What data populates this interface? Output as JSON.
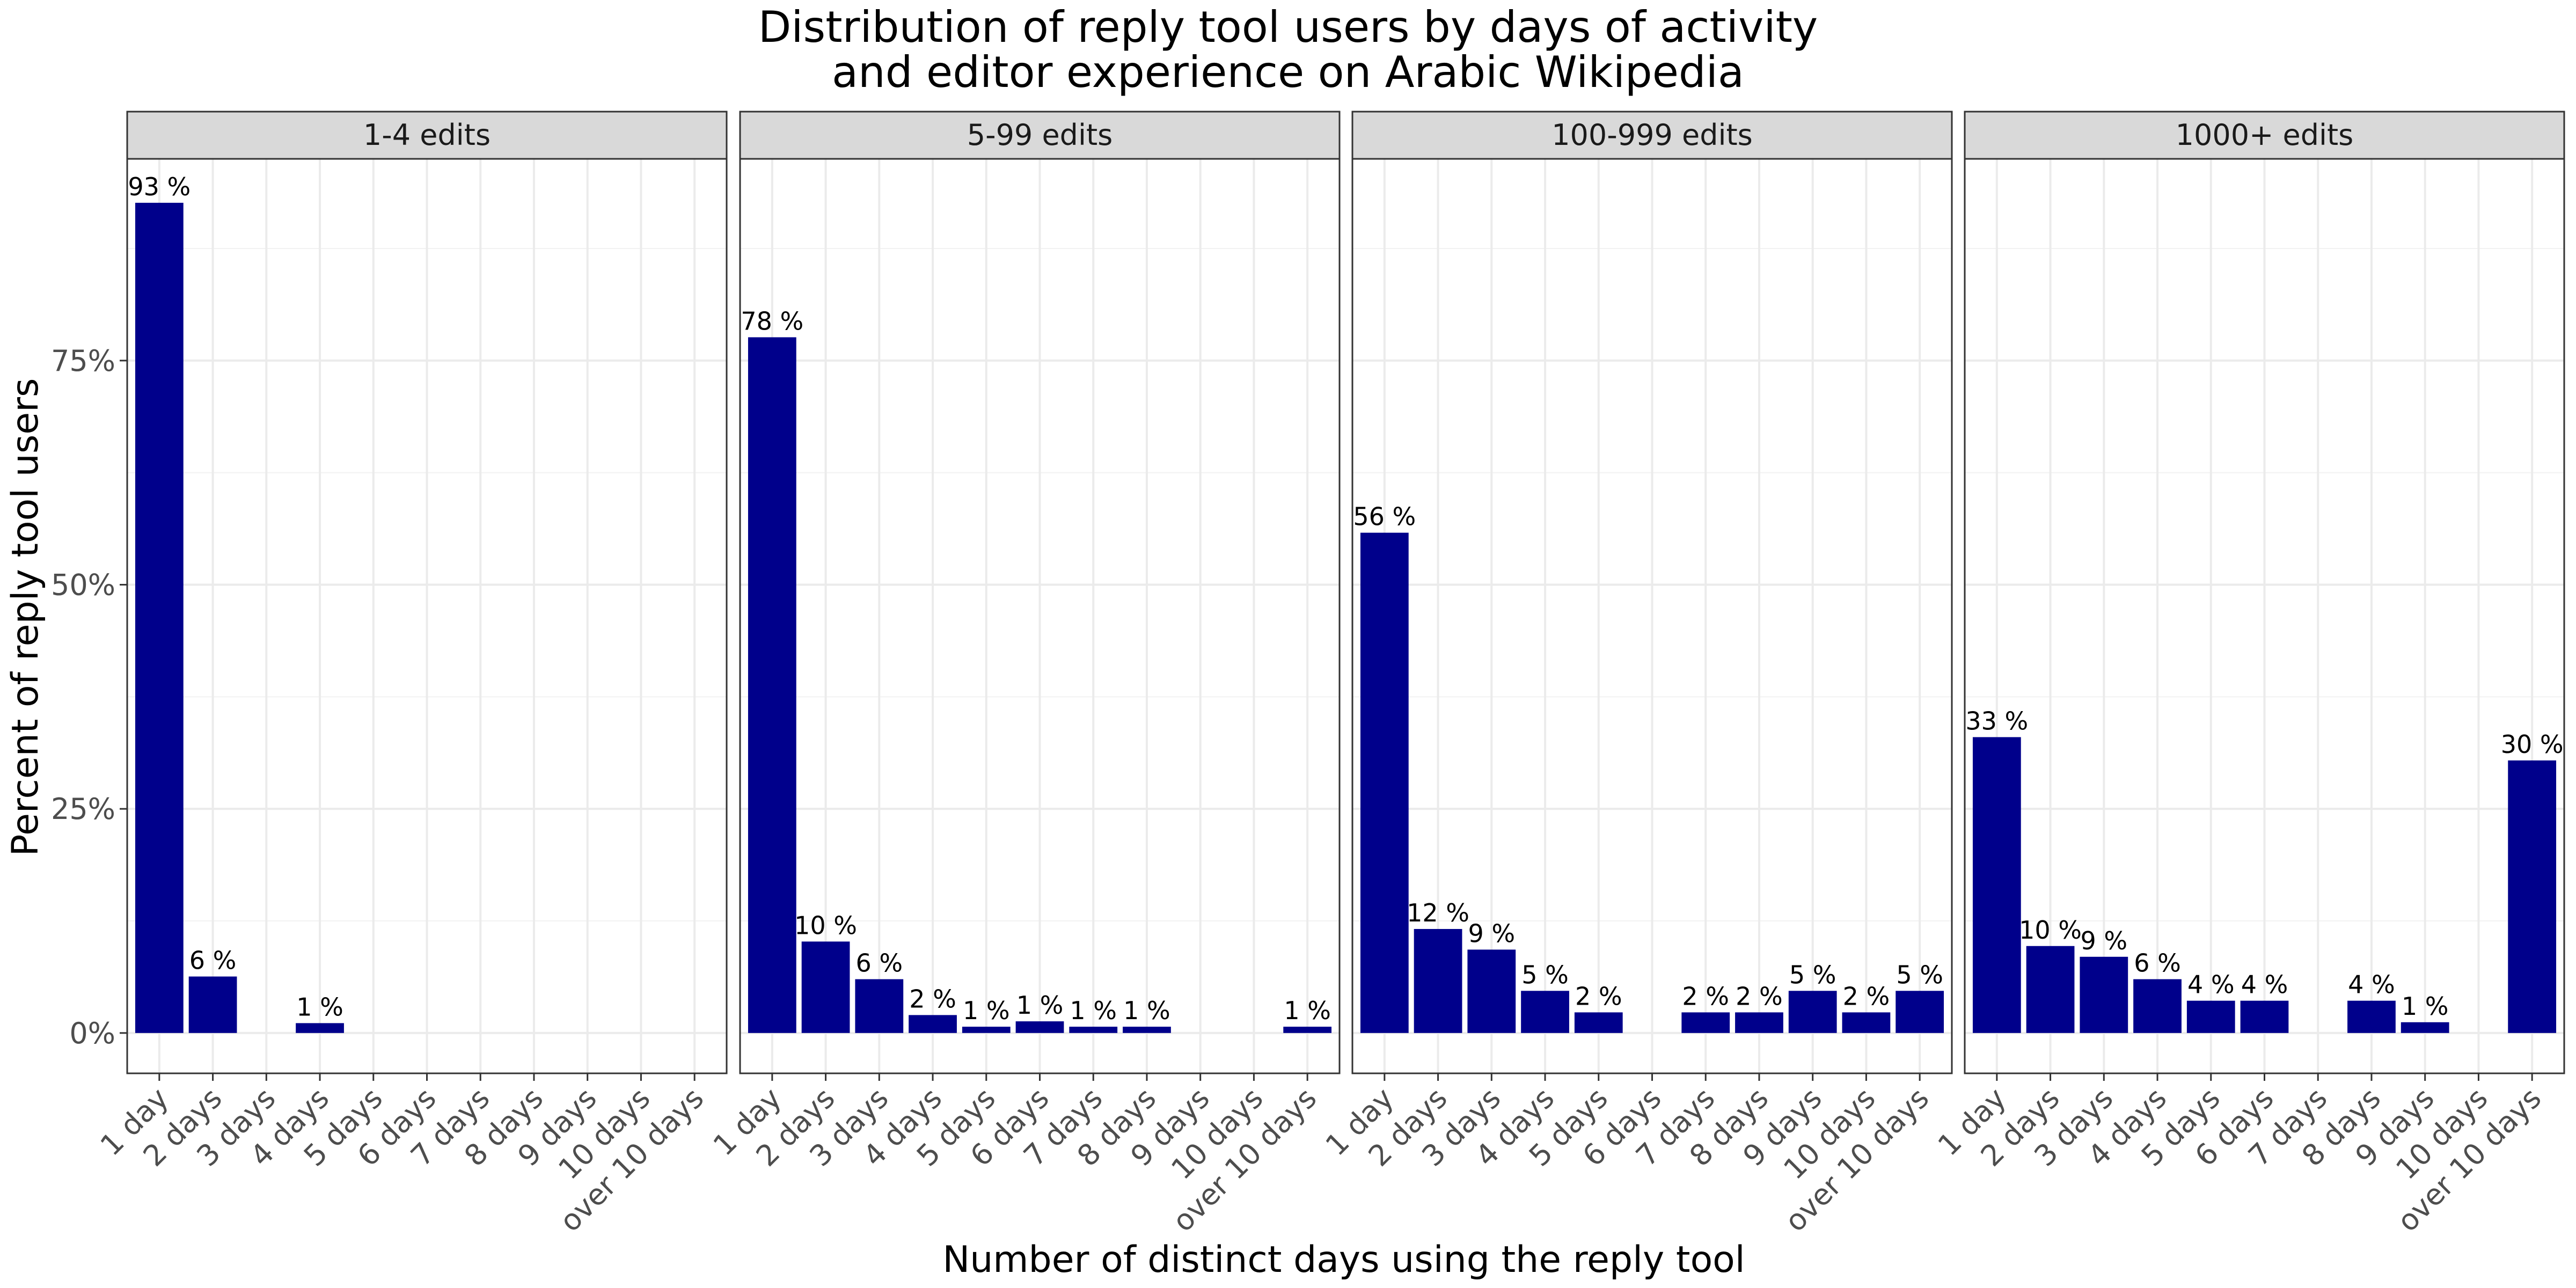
{
  "chart_data": {
    "type": "bar",
    "title_line1": "Distribution of reply tool users by days of activity",
    "title_line2": "and editor experience on Arabic Wikipedia",
    "xlabel": "Number of distinct days using the reply tool",
    "ylabel": "Percent of reply tool users",
    "ylim": [
      -0.045,
      0.975
    ],
    "y_ticks": [
      0,
      0.25,
      0.5,
      0.75
    ],
    "y_tick_labels": [
      "0%",
      "25%",
      "50%",
      "75%"
    ],
    "grid": true,
    "bar_color": "#00008B",
    "categories": [
      "1 day",
      "2 days",
      "3 days",
      "4 days",
      "5 days",
      "6 days",
      "7 days",
      "8 days",
      "9 days",
      "10 days",
      "over 10 days"
    ],
    "panels": [
      {
        "name": "1-4 edits",
        "values": [
          0.926,
          0.063,
          0,
          0.011,
          0,
          0,
          0,
          0,
          0,
          0,
          0
        ],
        "labels": [
          "93 %",
          "6 %",
          "",
          "1 %",
          "",
          "",
          "",
          "",
          "",
          "",
          ""
        ]
      },
      {
        "name": "5-99 edits",
        "values": [
          0.776,
          0.102,
          0.06,
          0.02,
          0.007,
          0.013,
          0.007,
          0.007,
          0,
          0,
          0.007
        ],
        "labels": [
          "78 %",
          "10 %",
          "6 %",
          "2 %",
          "1 %",
          "1 %",
          "1 %",
          "1 %",
          "",
          "",
          "1 %"
        ]
      },
      {
        "name": "100-999 edits",
        "values": [
          0.558,
          0.116,
          0.093,
          0.047,
          0.023,
          0,
          0.023,
          0.023,
          0.047,
          0.023,
          0.047
        ],
        "labels": [
          "56 %",
          "12 %",
          "9 %",
          "5 %",
          "2 %",
          "",
          "2 %",
          "2 %",
          "5 %",
          "2 %",
          "5 %"
        ]
      },
      {
        "name": "1000+ edits",
        "values": [
          0.33,
          0.097,
          0.085,
          0.06,
          0.036,
          0.036,
          0,
          0.036,
          0.012,
          0,
          0.304
        ],
        "labels": [
          "33 %",
          "10 %",
          "9 %",
          "6 %",
          "4 %",
          "4 %",
          "",
          "4 %",
          "1 %",
          "",
          "30 %"
        ]
      }
    ]
  }
}
